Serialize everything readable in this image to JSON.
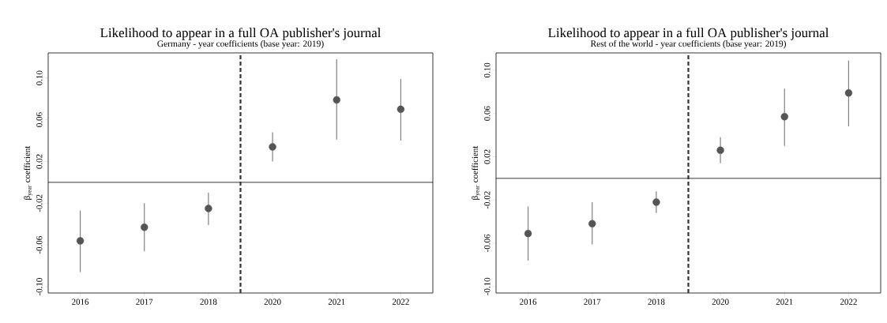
{
  "chart_data": [
    {
      "type": "scatter",
      "title": "Likelihood to appear in a full OA publisher's journal",
      "subtitle": "Germany - year coefficients (base year: 2019)",
      "ylabel": "β$_{year}$ coefficient",
      "categories": [
        "2016",
        "2017",
        "2018",
        "2020",
        "2021",
        "2022"
      ],
      "values": [
        -0.056,
        -0.043,
        -0.025,
        0.034,
        0.079,
        0.07
      ],
      "errors": [
        [
          -0.086,
          -0.027
        ],
        [
          -0.066,
          -0.02
        ],
        [
          -0.041,
          -0.01
        ],
        [
          0.02,
          0.048
        ],
        [
          0.041,
          0.118
        ],
        [
          0.04,
          0.099
        ]
      ],
      "color": "#555555",
      "ylim": [
        -0.106,
        0.124
      ],
      "yticks": [
        {
          "value": -0.1,
          "label": "-0.10"
        },
        {
          "value": -0.06,
          "label": "-0.06"
        },
        {
          "value": -0.02,
          "label": "-0.02"
        },
        {
          "value": 0.02,
          "label": "0.02"
        },
        {
          "value": 0.06,
          "label": "0.06"
        },
        {
          "value": 0.1,
          "label": "0.10"
        }
      ],
      "ref_lines": [
        {
          "axis": "y",
          "value": 0,
          "color": "#000000",
          "line_style": "solid"
        }
      ]
    },
    {
      "type": "scatter",
      "title": "Likelihood to appear in a full OA publisher's journal",
      "subtitle": "Rest of the world - year coefficients (base year: 2019)",
      "ylabel": "β$_{year}$ coefficient",
      "categories": [
        "2016",
        "2017",
        "2018",
        "2020",
        "2021",
        "2022"
      ],
      "values": [
        -0.051,
        -0.042,
        -0.022,
        0.026,
        0.057,
        0.079
      ],
      "errors": [
        [
          -0.076,
          -0.026
        ],
        [
          -0.061,
          -0.022
        ],
        [
          -0.032,
          -0.012
        ],
        [
          0.014,
          0.038
        ],
        [
          0.03,
          0.083
        ],
        [
          0.048,
          0.109
        ]
      ],
      "color": "#555555",
      "ylim": [
        -0.106,
        0.116
      ],
      "yticks": [
        {
          "value": -0.1,
          "label": "-0.10"
        },
        {
          "value": -0.06,
          "label": "-0.06"
        },
        {
          "value": -0.02,
          "label": "-0.02"
        },
        {
          "value": 0.02,
          "label": "0.02"
        },
        {
          "value": 0.06,
          "label": "0.06"
        },
        {
          "value": 0.1,
          "label": "0.10"
        }
      ],
      "ref_lines": [
        {
          "axis": "y",
          "value": 0,
          "color": "#000000",
          "line_style": "solid"
        }
      ]
    }
  ]
}
